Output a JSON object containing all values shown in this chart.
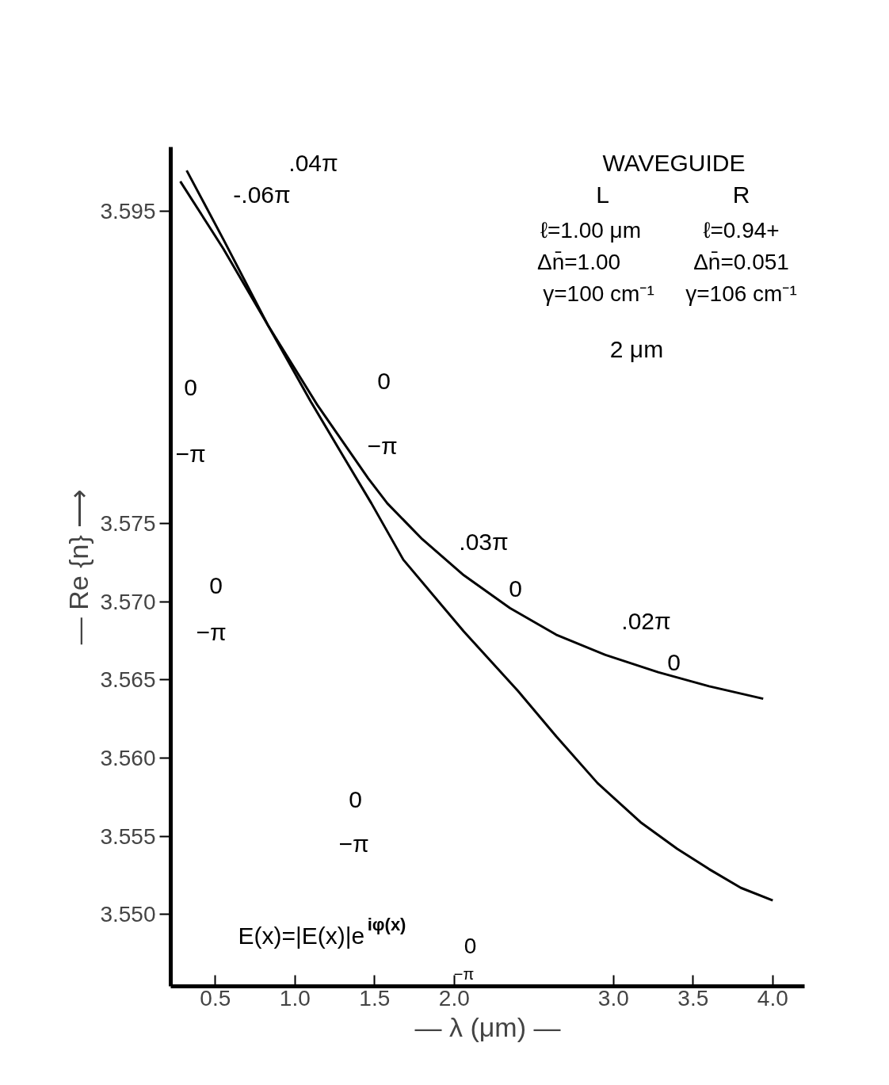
{
  "chart_data": {
    "type": "line",
    "xlabel": "— λ (μm) —",
    "ylabel": "— Re {n} ⟶",
    "xlim": [
      0.22,
      4.2
    ],
    "ylim": [
      3.5454,
      3.5991
    ],
    "xticks": [
      {
        "value": 0.5,
        "label": "0.5"
      },
      {
        "value": 1,
        "label": "1.0"
      },
      {
        "value": 1.5,
        "label": "1.5"
      },
      {
        "value": 2,
        "label": "2.0"
      },
      {
        "value": 3,
        "label": "3.0"
      },
      {
        "value": 3.5,
        "label": "3.5"
      },
      {
        "value": 4,
        "label": "4.0"
      }
    ],
    "yticks": [
      {
        "value": 3.55,
        "label": "3.550"
      },
      {
        "value": 3.555,
        "label": "3.555"
      },
      {
        "value": 3.56,
        "label": "3.560"
      },
      {
        "value": 3.565,
        "label": "3.565"
      },
      {
        "value": 3.57,
        "label": "3.570"
      },
      {
        "value": 3.575,
        "label": "3.575"
      },
      {
        "value": 3.595,
        "label": "3.595"
      }
    ],
    "grid": false,
    "marker": "none",
    "line_style": "solid",
    "series": [
      {
        "color": "#000000",
        "x": [
          0.32,
          0.55,
          0.83,
          1.1,
          1.31,
          1.48,
          1.68,
          2.06,
          2.4,
          2.64,
          2.9,
          3.17,
          3.4,
          3.6,
          3.8,
          4.0
        ],
        "values": [
          3.5976,
          3.5932,
          3.5877,
          3.5828,
          3.5792,
          3.5763,
          3.5727,
          3.5681,
          3.5643,
          3.5614,
          3.5584,
          3.5559,
          3.5542,
          3.5529,
          3.5517,
          3.5509
        ]
      },
      {
        "color": "#000000",
        "x": [
          0.28,
          0.55,
          0.83,
          1.14,
          1.46,
          1.58,
          1.8,
          2.06,
          2.35,
          2.64,
          2.95,
          3.28,
          3.6,
          3.94
        ],
        "values": [
          3.5969,
          3.5926,
          3.5877,
          3.5826,
          3.5779,
          3.5763,
          3.574,
          3.5717,
          3.5696,
          3.5679,
          3.5666,
          3.5655,
          3.5646,
          3.5638
        ]
      }
    ],
    "annotations": [
      ".04π",
      "-.06π",
      "0",
      "−π",
      "0",
      "−π",
      "0",
      "−π",
      ".03π",
      "0",
      ".02π",
      "0",
      "0",
      "−π",
      "0",
      "−π",
      "WAVEGUIDE",
      "L",
      "R",
      "ℓ=1.00 μm",
      "ℓ=0.94+",
      "Δn̄=1.00",
      "Δn̄=0.051",
      "γ=100 cm⁻¹",
      "γ=106 cm⁻¹",
      "2 μm",
      "E(x)=|E(x)|e$^{iφ(x)}$"
    ]
  }
}
